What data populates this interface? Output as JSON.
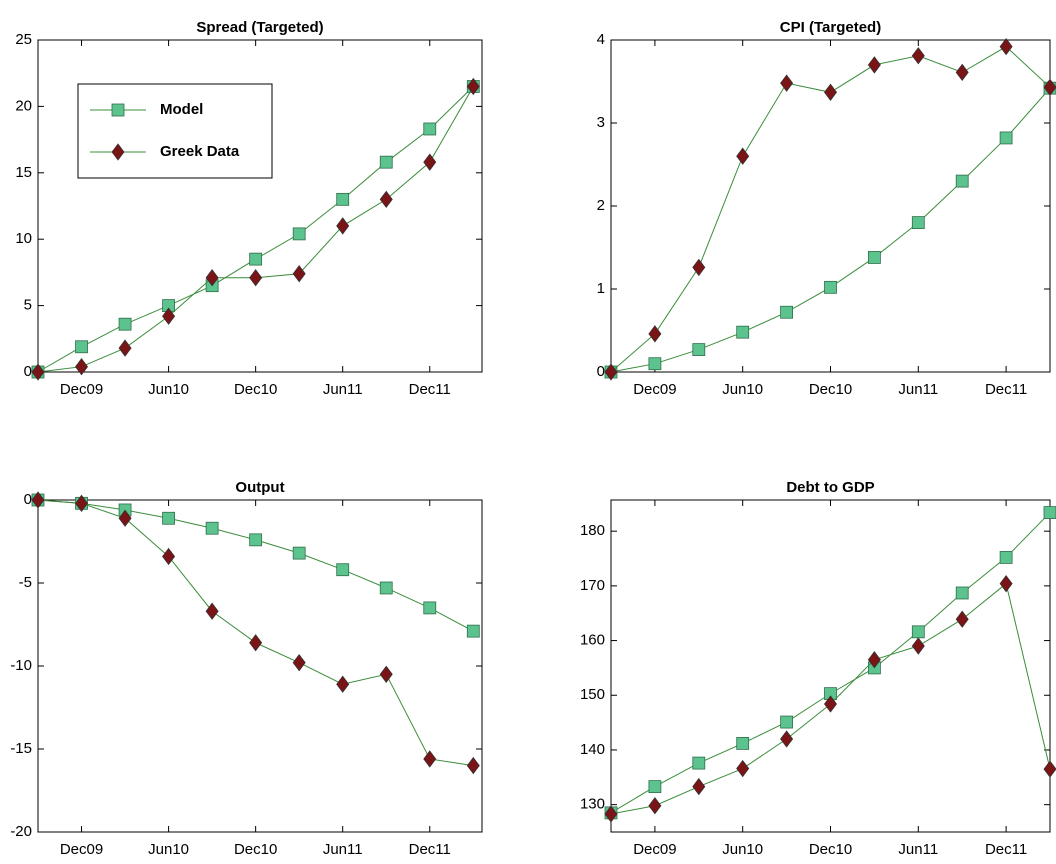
{
  "chart_data": [
    {
      "type": "line",
      "title": "Spread (Targeted)",
      "legend": "upper left",
      "line_color": "#3a8c3a",
      "categories": [
        null,
        "Dec09",
        null,
        "Jun10",
        null,
        "Dec10",
        null,
        "Jun11",
        null,
        "Dec11",
        null
      ],
      "ylim": [
        0,
        25
      ],
      "yticks": [
        0,
        5,
        10,
        15,
        20,
        25
      ],
      "series": [
        {
          "name": "Model",
          "color": "#5cc28e",
          "marker": "square",
          "values": [
            0,
            1.9,
            3.6,
            5.0,
            6.5,
            8.5,
            10.4,
            13.0,
            15.8,
            18.3,
            21.5
          ]
        },
        {
          "name": "Greek Data",
          "color": "#7a1416",
          "marker": "diamond",
          "values": [
            0,
            0.4,
            1.8,
            4.2,
            7.1,
            7.1,
            7.4,
            11.0,
            13.0,
            15.8,
            21.5
          ]
        }
      ]
    },
    {
      "type": "line",
      "title": "CPI (Targeted)",
      "line_color": "#3a8c3a",
      "categories": [
        null,
        "Dec09",
        null,
        "Jun10",
        null,
        "Dec10",
        null,
        "Jun11",
        null,
        "Dec11",
        null
      ],
      "ylim": [
        0,
        4
      ],
      "yticks": [
        0,
        1,
        2,
        3,
        4
      ],
      "series": [
        {
          "name": "Model",
          "color": "#5cc28e",
          "marker": "square",
          "values": [
            0,
            0.1,
            0.27,
            0.48,
            0.72,
            1.02,
            1.38,
            1.8,
            2.3,
            2.82,
            3.42
          ]
        },
        {
          "name": "Greek Data",
          "color": "#7a1416",
          "marker": "diamond",
          "values": [
            0,
            0.46,
            1.26,
            2.6,
            3.48,
            3.37,
            3.7,
            3.81,
            3.61,
            3.92,
            3.43
          ]
        }
      ]
    },
    {
      "type": "line",
      "title": "Output",
      "line_color": "#3a8c3a",
      "categories": [
        null,
        "Dec09",
        null,
        "Jun10",
        null,
        "Dec10",
        null,
        "Jun11",
        null,
        "Dec11",
        null
      ],
      "ylim": [
        -20,
        0
      ],
      "yticks": [
        -20,
        -15,
        -10,
        -5,
        0
      ],
      "series": [
        {
          "name": "Model",
          "color": "#5cc28e",
          "marker": "square",
          "values": [
            0,
            -0.2,
            -0.6,
            -1.1,
            -1.7,
            -2.4,
            -3.2,
            -4.2,
            -5.3,
            -6.5,
            -7.9
          ]
        },
        {
          "name": "Greek Data",
          "color": "#7a1416",
          "marker": "diamond",
          "values": [
            0,
            -0.2,
            -1.1,
            -3.4,
            -6.7,
            -8.6,
            -9.8,
            -11.1,
            -10.5,
            -15.6,
            -16.0
          ]
        }
      ]
    },
    {
      "type": "line",
      "title": "Debt to GDP",
      "line_color": "#3a8c3a",
      "categories": [
        null,
        "Dec09",
        null,
        "Jun10",
        null,
        "Dec10",
        null,
        "Jun11",
        null,
        "Dec11",
        null
      ],
      "ylim": [
        125,
        185.7
      ],
      "yticks": [
        130,
        140,
        150,
        160,
        170,
        180
      ],
      "series": [
        {
          "name": "Model",
          "color": "#5cc28e",
          "marker": "square",
          "values": [
            128.5,
            133.3,
            137.6,
            141.2,
            145.1,
            150.3,
            155.0,
            161.6,
            168.7,
            175.2,
            183.4
          ]
        },
        {
          "name": "Greek Data",
          "color": "#7a1416",
          "marker": "diamond",
          "values": [
            128.3,
            129.8,
            133.3,
            136.6,
            142.0,
            148.4,
            156.5,
            159.0,
            163.9,
            170.4,
            136.5
          ]
        }
      ]
    }
  ]
}
